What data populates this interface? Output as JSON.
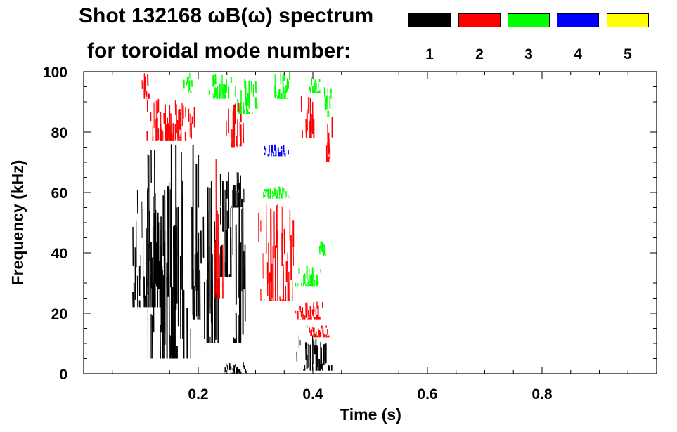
{
  "header": {
    "title_line1": "Shot 132168 ωB(ω) spectrum",
    "title_line2": "for toroidal mode number:"
  },
  "legend": {
    "modes": [
      {
        "label": "1",
        "color": "#000000"
      },
      {
        "label": "2",
        "color": "#ff0000"
      },
      {
        "label": "3",
        "color": "#00ff00"
      },
      {
        "label": "4",
        "color": "#0000ff"
      },
      {
        "label": "5",
        "color": "#ffff00"
      }
    ]
  },
  "chart_data": {
    "type": "heatmap",
    "title": "Shot 132168 ωB(ω) spectrum",
    "xlabel": "Time (s)",
    "ylabel": "Frequency (kHz)",
    "xlim": [
      0.0,
      1.0
    ],
    "ylim": [
      0,
      100
    ],
    "xticks": [
      0.2,
      0.4,
      0.6,
      0.8
    ],
    "xtick_labels": [
      "0.2",
      "0.4",
      "0.6",
      "0.8"
    ],
    "yticks": [
      0,
      20,
      40,
      60,
      80,
      100
    ],
    "ytick_labels": [
      "0",
      "20",
      "40",
      "60",
      "80",
      "100"
    ],
    "grid": false,
    "legend_placement": "top-right",
    "series": [
      {
        "name": "1",
        "color": "#000000",
        "regions": [
          {
            "t0": 0.08,
            "t1": 0.145,
            "f0": 22,
            "f1": 62
          },
          {
            "t0": 0.11,
            "t1": 0.195,
            "f0": 5,
            "f1": 76
          },
          {
            "t0": 0.185,
            "t1": 0.205,
            "f0": 18,
            "f1": 78
          },
          {
            "t0": 0.205,
            "t1": 0.235,
            "f0": 10,
            "f1": 70
          },
          {
            "t0": 0.235,
            "t1": 0.262,
            "f0": 32,
            "f1": 70
          },
          {
            "t0": 0.25,
            "t1": 0.285,
            "f0": 55,
            "f1": 70
          },
          {
            "t0": 0.26,
            "t1": 0.285,
            "f0": 10,
            "f1": 68
          },
          {
            "t0": 0.245,
            "t1": 0.285,
            "f0": 0,
            "f1": 4
          },
          {
            "t0": 0.37,
            "t1": 0.435,
            "f0": 1,
            "f1": 13
          }
        ]
      },
      {
        "name": "2",
        "color": "#ff0000",
        "regions": [
          {
            "t0": 0.1,
            "t1": 0.115,
            "f0": 91,
            "f1": 100
          },
          {
            "t0": 0.105,
            "t1": 0.195,
            "f0": 77,
            "f1": 92
          },
          {
            "t0": 0.225,
            "t1": 0.245,
            "f0": 25,
            "f1": 72
          },
          {
            "t0": 0.245,
            "t1": 0.28,
            "f0": 75,
            "f1": 90
          },
          {
            "t0": 0.305,
            "t1": 0.375,
            "f0": 24,
            "f1": 56
          },
          {
            "t0": 0.37,
            "t1": 0.42,
            "f0": 18,
            "f1": 24
          },
          {
            "t0": 0.38,
            "t1": 0.405,
            "f0": 78,
            "f1": 92
          },
          {
            "t0": 0.42,
            "t1": 0.435,
            "f0": 70,
            "f1": 85
          },
          {
            "t0": 0.39,
            "t1": 0.43,
            "f0": 12,
            "f1": 16
          }
        ]
      },
      {
        "name": "3",
        "color": "#00ff00",
        "regions": [
          {
            "t0": 0.175,
            "t1": 0.195,
            "f0": 93,
            "f1": 100
          },
          {
            "t0": 0.22,
            "t1": 0.26,
            "f0": 91,
            "f1": 100
          },
          {
            "t0": 0.265,
            "t1": 0.305,
            "f0": 86,
            "f1": 98
          },
          {
            "t0": 0.33,
            "t1": 0.36,
            "f0": 91,
            "f1": 100
          },
          {
            "t0": 0.31,
            "t1": 0.36,
            "f0": 58,
            "f1": 62
          },
          {
            "t0": 0.39,
            "t1": 0.415,
            "f0": 93,
            "f1": 100
          },
          {
            "t0": 0.37,
            "t1": 0.415,
            "f0": 29,
            "f1": 36
          },
          {
            "t0": 0.41,
            "t1": 0.425,
            "f0": 39,
            "f1": 44
          },
          {
            "t0": 0.42,
            "t1": 0.435,
            "f0": 85,
            "f1": 95
          }
        ]
      },
      {
        "name": "4",
        "color": "#0000ff",
        "regions": [
          {
            "t0": 0.31,
            "t1": 0.36,
            "f0": 72,
            "f1": 76
          }
        ]
      },
      {
        "name": "5",
        "color": "#ffff00",
        "regions": [
          {
            "t0": 0.21,
            "t1": 0.215,
            "f0": 9,
            "f1": 11
          }
        ]
      }
    ]
  }
}
